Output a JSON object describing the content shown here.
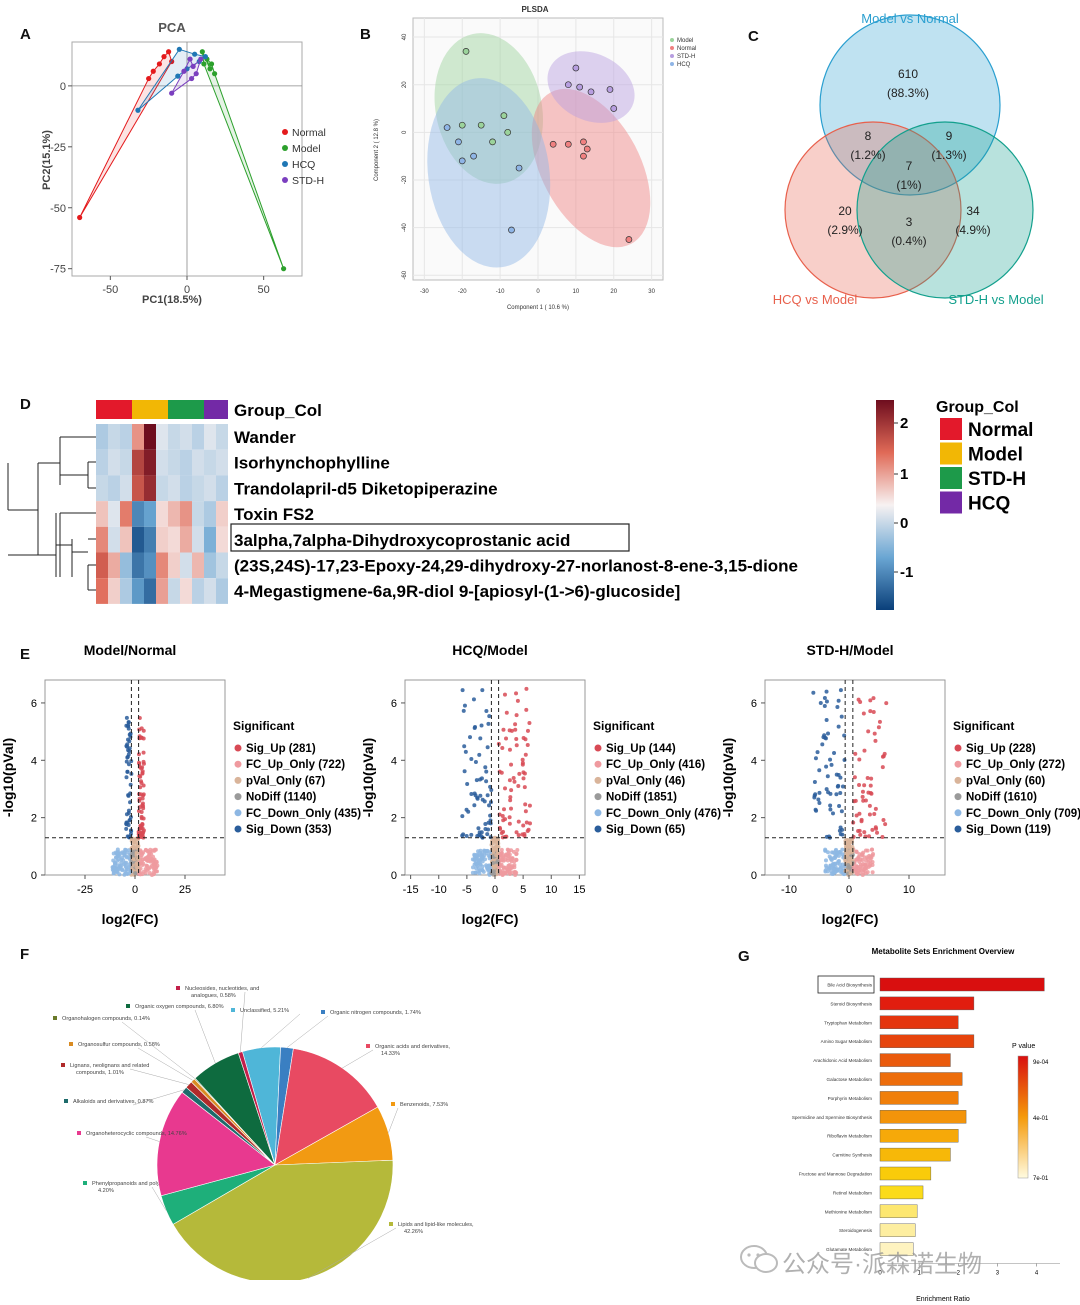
{
  "panels": {
    "a": "A",
    "b": "B",
    "c": "C",
    "d": "D",
    "e": "E",
    "f": "F",
    "g": "G"
  },
  "pca": {
    "title": "PCA",
    "xlabel": "PC1(18.5%)",
    "ylabel": "PC2(15.1%)",
    "xticks": [
      "-50",
      "0",
      "50"
    ],
    "yticks": [
      "0",
      "-25",
      "-50",
      "-75"
    ],
    "legend": [
      {
        "name": "Normal",
        "color": "#e41a1c"
      },
      {
        "name": "Model",
        "color": "#2ca02c"
      },
      {
        "name": "HCQ",
        "color": "#1f77b4"
      },
      {
        "name": "STD-H",
        "color": "#7b3fbf"
      }
    ],
    "chart_data": {
      "type": "scatter",
      "xlim": [
        -75,
        75
      ],
      "ylim": [
        -78,
        18
      ],
      "series": [
        {
          "name": "Normal",
          "color": "#e41a1c",
          "points": [
            [
              -70,
              -54
            ],
            [
              -22,
              6
            ],
            [
              -18,
              9
            ],
            [
              -15,
              12
            ],
            [
              -12,
              14
            ],
            [
              -10,
              10
            ],
            [
              -25,
              3
            ]
          ]
        },
        {
          "name": "Model",
          "color": "#2ca02c",
          "points": [
            [
              63,
              -75
            ],
            [
              10,
              14
            ],
            [
              13,
              11
            ],
            [
              15,
              7
            ],
            [
              16,
              9
            ],
            [
              11,
              9
            ],
            [
              18,
              5
            ]
          ]
        },
        {
          "name": "HCQ",
          "color": "#1f77b4",
          "points": [
            [
              -32,
              -10
            ],
            [
              -5,
              15
            ],
            [
              5,
              13
            ],
            [
              8,
              10
            ],
            [
              12,
              12
            ],
            [
              -6,
              4
            ],
            [
              0,
              7
            ]
          ]
        },
        {
          "name": "STD-H",
          "color": "#7b3fbf",
          "points": [
            [
              -10,
              -3
            ],
            [
              2,
              11
            ],
            [
              4,
              8
            ],
            [
              6,
              5
            ],
            [
              9,
              11
            ],
            [
              3,
              3
            ],
            [
              -2,
              6
            ]
          ]
        }
      ]
    }
  },
  "plsda": {
    "title": "PLSDA",
    "xlabel": "Component 1 ( 10.6 %)",
    "ylabel": "Component 2 ( 12.8 %)",
    "xticks": [
      "-30",
      "-20",
      "-10",
      "0",
      "10",
      "20",
      "30"
    ],
    "yticks": [
      "40",
      "20",
      "0",
      "-20",
      "-40",
      "-60"
    ],
    "legend": [
      {
        "name": "Model",
        "color": "#9bd39b"
      },
      {
        "name": "Normal",
        "color": "#f08080"
      },
      {
        "name": "STD-H",
        "color": "#b79ee0"
      },
      {
        "name": "HCQ",
        "color": "#8fb5e6"
      }
    ],
    "chart_data": {
      "type": "scatter",
      "xlim": [
        -33,
        33
      ],
      "ylim": [
        -62,
        48
      ],
      "series": [
        {
          "name": "Model",
          "color": "#9bd39b",
          "points": [
            [
              -19,
              34
            ],
            [
              -20,
              3
            ],
            [
              -15,
              3
            ],
            [
              -9,
              7
            ],
            [
              -8,
              0
            ],
            [
              -12,
              -4
            ]
          ]
        },
        {
          "name": "Normal",
          "color": "#f08080",
          "points": [
            [
              4,
              -5
            ],
            [
              8,
              -5
            ],
            [
              12,
              -4
            ],
            [
              13,
              -7
            ],
            [
              12,
              -10
            ],
            [
              24,
              -45
            ]
          ]
        },
        {
          "name": "STD-H",
          "color": "#b79ee0",
          "points": [
            [
              10,
              27
            ],
            [
              8,
              20
            ],
            [
              11,
              19
            ],
            [
              14,
              17
            ],
            [
              19,
              18
            ],
            [
              20,
              10
            ]
          ]
        },
        {
          "name": "HCQ",
          "color": "#8fb5e6",
          "points": [
            [
              -21,
              -4
            ],
            [
              -17,
              -10
            ],
            [
              -20,
              -12
            ],
            [
              -5,
              -15
            ],
            [
              -7,
              -41
            ],
            [
              -24,
              2
            ]
          ]
        }
      ]
    }
  },
  "venn": {
    "chart_data": {
      "type": "venn",
      "sets": [
        {
          "name": "Model vs Normal",
          "color": "#2a9fd0"
        },
        {
          "name": "HCQ vs Model",
          "color": "#e8604c"
        },
        {
          "name": "STD-H vs Model",
          "color": "#13a08d"
        }
      ],
      "regions": [
        {
          "n": "610",
          "p": "(88.3%)"
        },
        {
          "n": "8",
          "p": "(1.2%)"
        },
        {
          "n": "9",
          "p": "(1.3%)"
        },
        {
          "n": "7",
          "p": "(1%)"
        },
        {
          "n": "20",
          "p": "(2.9%)"
        },
        {
          "n": "3",
          "p": "(0.4%)"
        },
        {
          "n": "34",
          "p": "(4.9%)"
        }
      ]
    }
  },
  "heatmap": {
    "group_label": "Group_Col",
    "rows": [
      "Wander",
      "Isorhynchophylline",
      "Trandolapril-d5 Diketopiperazine",
      "Toxin FS2",
      "3alpha,7alpha-Dihydroxycoprostanic acid",
      "(23S,24S)-17,23-Epoxy-24,29-dihydroxy-27-norlanost-8-ene-3,15-dione",
      "4-Megastigmene-6a,9R-diol 9-[apiosyl-(1->6)-glucoside]"
    ],
    "legend_title": "Group_Col",
    "groups": [
      {
        "name": "Normal",
        "color": "#e3192b"
      },
      {
        "name": "Model",
        "color": "#f2b705"
      },
      {
        "name": "STD-H",
        "color": "#1d9a4a"
      },
      {
        "name": "HCQ",
        "color": "#7329a6"
      }
    ],
    "scale": [
      "2",
      "1",
      "0",
      "-1"
    ],
    "chart_data": {
      "type": "heatmap",
      "values": [
        [
          -0.6,
          -0.4,
          -0.5,
          0.8,
          2.3,
          -0.2,
          -0.4,
          -0.3,
          -0.5,
          -0.2,
          -0.4
        ],
        [
          -0.5,
          -0.3,
          -0.4,
          1.6,
          2.1,
          -0.3,
          -0.4,
          -0.5,
          -0.3,
          -0.4,
          -0.3
        ],
        [
          -0.4,
          -0.5,
          -0.3,
          1.4,
          1.9,
          -0.4,
          -0.3,
          -0.5,
          -0.4,
          -0.3,
          -0.5
        ],
        [
          0.4,
          -0.2,
          1.0,
          -1.5,
          -1.2,
          0.2,
          0.5,
          0.8,
          -0.4,
          -0.6,
          0.3
        ],
        [
          0.9,
          -0.3,
          0.4,
          -2.0,
          -1.6,
          0.3,
          0.2,
          0.6,
          -0.3,
          -1.0,
          0.2
        ],
        [
          1.3,
          0.6,
          -0.8,
          -1.7,
          -1.4,
          0.9,
          0.3,
          -0.3,
          0.5,
          -0.7,
          -0.4
        ],
        [
          1.1,
          0.3,
          -0.6,
          -1.3,
          -1.8,
          0.7,
          -0.4,
          0.2,
          -0.5,
          -0.3,
          -0.6
        ]
      ]
    }
  },
  "volcano": {
    "xlabel": "log2(FC)",
    "ylabel": "-log10(pVal)",
    "legend_title": "Significant",
    "cats": [
      {
        "key": "Sig_Up",
        "color": "#d84a55"
      },
      {
        "key": "FC_Up_Only",
        "color": "#ef9a9f"
      },
      {
        "key": "pVal_Only",
        "color": "#d9b49a"
      },
      {
        "key": "NoDiff",
        "color": "#9a9a9a"
      },
      {
        "key": "FC_Down_Only",
        "color": "#8db7e3"
      },
      {
        "key": "Sig_Down",
        "color": "#2a5d9b"
      }
    ],
    "plots": [
      {
        "title": "Model/Normal",
        "counts": [
          "Sig_Up (281)",
          "FC_Up_Only (722)",
          "pVal_Only (67)",
          "NoDiff (1140)",
          "FC_Down_Only (435)",
          "Sig_Down (353)"
        ],
        "xticks": [
          "-25",
          "0",
          "25"
        ],
        "xvals": [
          -25,
          0,
          25
        ],
        "xlim": [
          -45,
          45
        ],
        "yticks": [
          "0",
          "2",
          "4",
          "6"
        ]
      },
      {
        "title": "HCQ/Model",
        "counts": [
          "Sig_Up (144)",
          "FC_Up_Only (416)",
          "pVal_Only (46)",
          "NoDiff (1851)",
          "FC_Down_Only (476)",
          "Sig_Down (65)"
        ],
        "xticks": [
          "-15",
          "-10",
          "-5",
          "0",
          "5",
          "10",
          "15"
        ],
        "xvals": [
          -15,
          -10,
          -5,
          0,
          5,
          10,
          15
        ],
        "xlim": [
          -16,
          16
        ],
        "yticks": [
          "0",
          "2",
          "4",
          "6"
        ]
      },
      {
        "title": "STD-H/Model",
        "counts": [
          "Sig_Up (228)",
          "FC_Up_Only (272)",
          "pVal_Only (60)",
          "NoDiff (1610)",
          "FC_Down_Only (709)",
          "Sig_Down (119)"
        ],
        "xticks": [
          "-10",
          "0",
          "10"
        ],
        "xvals": [
          -10,
          0,
          10
        ],
        "xlim": [
          -14,
          16
        ],
        "yticks": [
          "0",
          "2",
          "4",
          "6"
        ]
      }
    ]
  },
  "pie": {
    "chart_data": {
      "type": "pie",
      "slices": [
        {
          "label": "Unclassified, 5.21%",
          "value": 5.21,
          "color": "#4fb6d8"
        },
        {
          "label": "Organic nitrogen compounds, 1.74%",
          "value": 1.74,
          "color": "#3a7fc2"
        },
        {
          "label": "Organic acids and derivatives, 14.33%",
          "value": 14.33,
          "color": "#e84a62"
        },
        {
          "label": "Benzenoids, 7.53%",
          "value": 7.53,
          "color": "#f29a12"
        },
        {
          "label": "Lipids and lipid-like molecules, 42.26%",
          "value": 42.26,
          "color": "#b5b93a"
        },
        {
          "label": "Phenylpropanoids and polyketides, 4.20%",
          "value": 4.2,
          "color": "#1eaf7a"
        },
        {
          "label": "Organoheterocyclic compounds, 14.76%",
          "value": 14.76,
          "color": "#e8398f"
        },
        {
          "label": "Alkaloids and derivatives, 0.87%",
          "value": 0.87,
          "color": "#1d6b6b"
        },
        {
          "label": "Lignans, neolignans and related compounds, 1.01%",
          "value": 1.01,
          "color": "#b02a2a"
        },
        {
          "label": "Organosulfur compounds, 0.58%",
          "value": 0.58,
          "color": "#d98b22"
        },
        {
          "label": "Organohalogen compounds, 0.14%",
          "value": 0.14,
          "color": "#6a7a2a"
        },
        {
          "label": "Organic oxygen compounds, 6.80%",
          "value": 6.8,
          "color": "#0e6b3f"
        },
        {
          "label": "Nucleosides, nucleotides, and analogues, 0.58%",
          "value": 0.58,
          "color": "#c21f4a"
        }
      ]
    }
  },
  "enrich": {
    "title": "Metabolite Sets Enrichment Overview",
    "xlabel": "Enrichment Ratio",
    "legend_title": "P value",
    "legend_ticks": [
      "9e-04",
      "4e-01",
      "7e-01"
    ],
    "xticks": [
      "0",
      "1",
      "2",
      "3",
      "4"
    ],
    "chart_data": {
      "type": "bar",
      "orientation": "horizontal",
      "xlim": [
        0,
        4.6
      ],
      "categories": [
        "Bile Acid Biosynthesis",
        "Steroid Biosynthesis",
        "Tryptophan Metabolism",
        "Amino Sugar Metabolism",
        "Arachidonic Acid Metabolism",
        "Galactose Metabolism",
        "Porphyrin Metabolism",
        "Spermidine and Spermine Biosynthesis",
        "Riboflavin Metabolism",
        "Carnitine Synthesis",
        "Fructose and Mannose Degradation",
        "Retinol Metabolism",
        "Methionine Metabolism",
        "Steroidogenesis",
        "Glutamate Metabolism"
      ],
      "values": [
        4.2,
        2.4,
        2.0,
        2.4,
        1.8,
        2.1,
        2.0,
        2.2,
        2.0,
        1.8,
        1.3,
        1.1,
        0.95,
        0.9,
        0.85
      ],
      "colors": [
        "#d90f0f",
        "#e11d0f",
        "#e4350e",
        "#e6440d",
        "#ea5a0c",
        "#ed6d0b",
        "#f07f0a",
        "#f3940a",
        "#f6a909",
        "#f7b808",
        "#f9cb0a",
        "#fbdb1a",
        "#fde770",
        "#fdeea0",
        "#fef3c0"
      ]
    }
  },
  "watermark": "公众号·派森诺生物"
}
